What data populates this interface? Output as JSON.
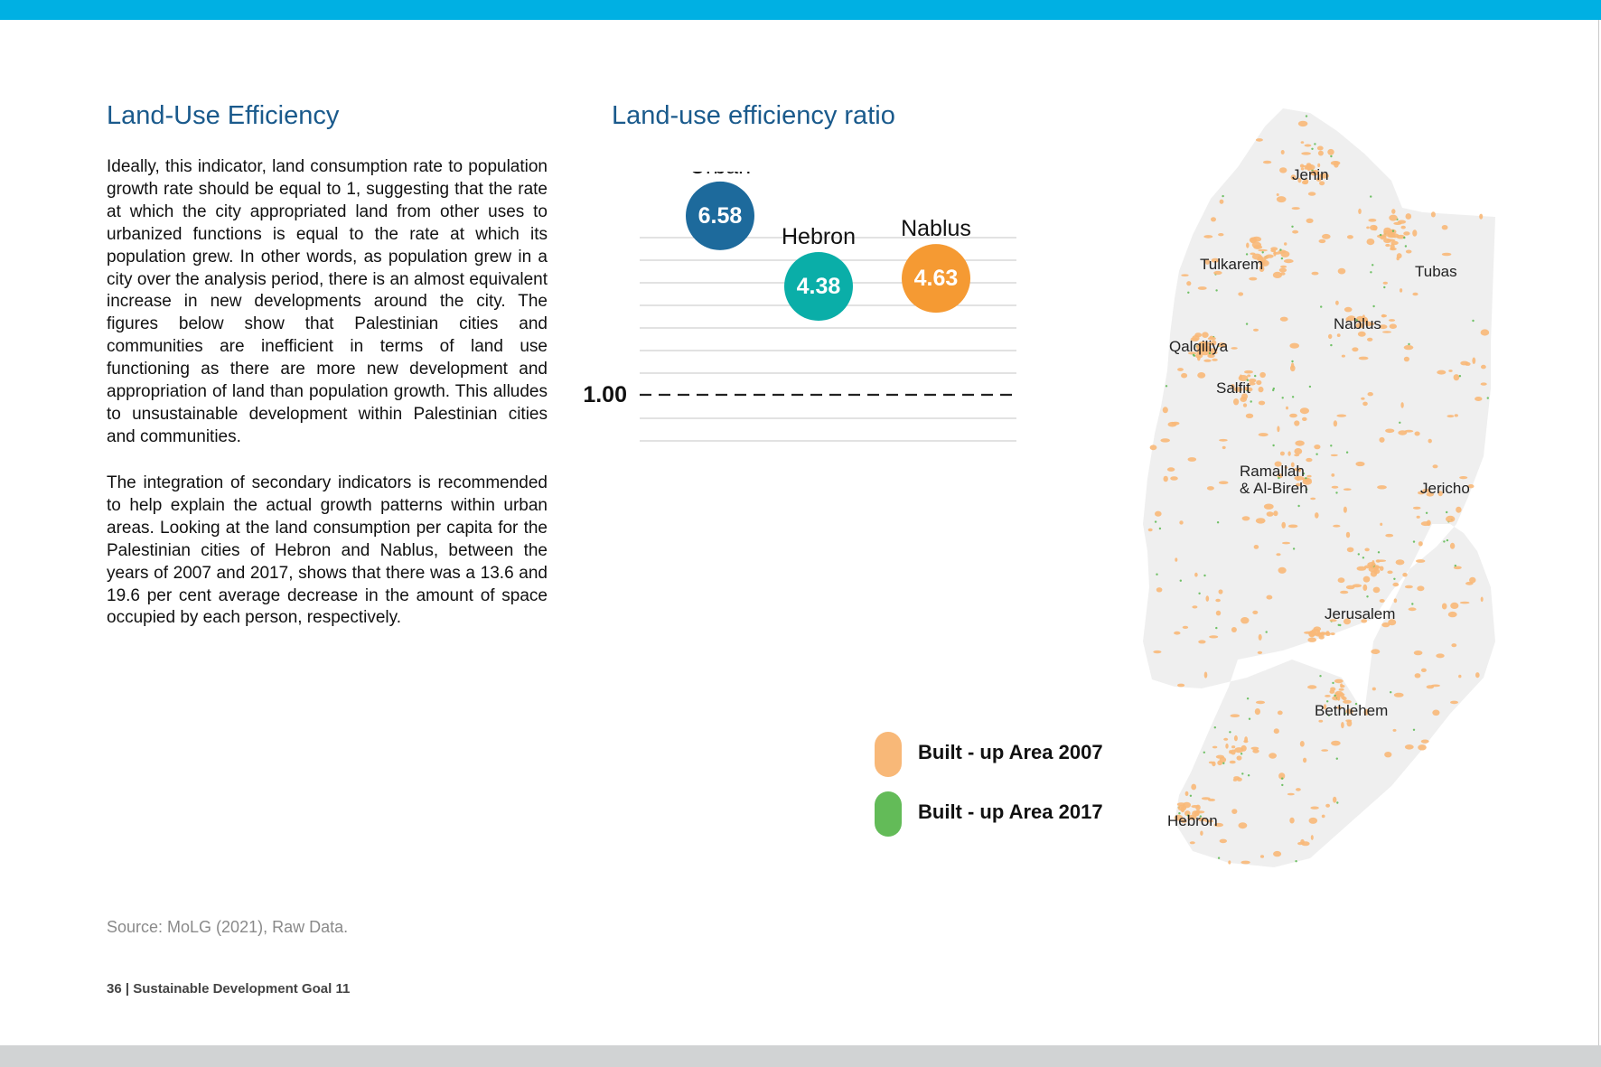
{
  "colors": {
    "accent_bar": "#00b0e3",
    "heading": "#1a5a8c",
    "urban": "#1d6a9c",
    "hebron": "#0aaea8",
    "nablus": "#f59a33",
    "built_2007": "#f8b878",
    "built_2017": "#63bb58"
  },
  "left": {
    "title": "Land-Use Efficiency",
    "para1": "Ideally, this indicator, land consumption rate to population growth rate should be equal to 1, suggesting that the rate at which the city appropriated land from other uses to urbanized functions is equal to the rate at which its population grew. In other words, as population grew in a city over the analysis period, there is an almost equivalent increase in new developments around the city. The figures below show that Palestinian cities and communities are inefficient in terms of land use functioning as there are more new development and appropriation of land than population growth. This alludes to unsustainable development within Palestinian cities and communities.",
    "para2": "The integration of secondary indicators is recommended to help explain the actual growth patterns within urban areas. Looking at the land consumption per capita for the Palestinian cities of Hebron and Nablus, between the years of 2007 and 2017, shows that there was a 13.6 and 19.6 per cent average decrease in the amount of space occupied by each person, respectively."
  },
  "source": "Source: MoLG (2021), Raw Data.",
  "footer": "36 | Sustainable Development Goal 11",
  "chart_title": "Land-use efficiency ratio",
  "chart_data": {
    "type": "scatter",
    "title": "Land-use efficiency ratio",
    "categories": [
      "Urban",
      "Hebron",
      "Nablus"
    ],
    "values": [
      6.58,
      4.38,
      4.63
    ],
    "value_labels": [
      "6.58",
      "4.38",
      "4.63"
    ],
    "reference_line": {
      "value": 1.0,
      "label": "1.00",
      "style": "dashed"
    },
    "grid": true
  },
  "legend": [
    {
      "label": "Built - up Area 2007",
      "color": "#f8b878"
    },
    {
      "label": "Built - up Area 2017",
      "color": "#63bb58"
    }
  ],
  "map": {
    "labels": [
      "Jenin",
      "Tulkarem",
      "Tubas",
      "Nablus",
      "Qalqiliya",
      "Salfit",
      "Ramallah\n& Al-Bireh",
      "Jericho",
      "Jerusalem",
      "Bethlehem",
      "Hebron"
    ]
  }
}
